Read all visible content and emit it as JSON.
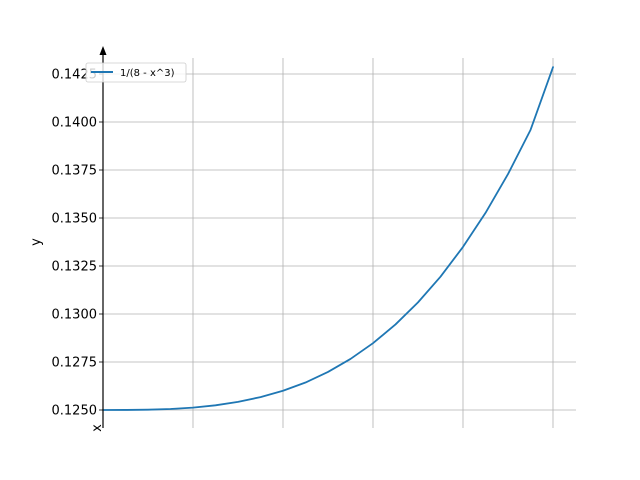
{
  "chart_data": {
    "type": "line",
    "title": "",
    "xlabel": "x",
    "ylabel": "y",
    "xlim": [
      0,
      1
    ],
    "ylim": [
      0.1245,
      0.1435
    ],
    "grid": true,
    "legend_position": "top-left",
    "x_ticks": [
      0,
      0.2,
      0.4,
      0.6,
      0.8,
      1.0
    ],
    "x_tick_labels": [
      "",
      "",
      "",
      "",
      "",
      ""
    ],
    "y_ticks": [
      0.125,
      0.1275,
      0.13,
      0.1325,
      0.135,
      0.1375,
      0.14,
      0.1425
    ],
    "y_tick_labels": [
      "0.1250",
      "0.1275",
      "0.1300",
      "0.1325",
      "0.1350",
      "0.1375",
      "0.1400",
      "0.1425"
    ],
    "series": [
      {
        "name": "1/(8 - x^3)",
        "color": "#1f77b4",
        "x": [
          0,
          0.05,
          0.1,
          0.15,
          0.2,
          0.25,
          0.3,
          0.35,
          0.4,
          0.45,
          0.5,
          0.55,
          0.6,
          0.65,
          0.7,
          0.75,
          0.8,
          0.85,
          0.9,
          0.95,
          1.0
        ],
        "y": [
          0.125,
          0.125002,
          0.125016,
          0.125053,
          0.125125,
          0.125245,
          0.125423,
          0.125672,
          0.126004,
          0.126431,
          0.126984,
          0.127659,
          0.128479,
          0.129457,
          0.130607,
          0.131944,
          0.133494,
          0.135265,
          0.137287,
          0.139584,
          0.142857
        ]
      }
    ]
  }
}
